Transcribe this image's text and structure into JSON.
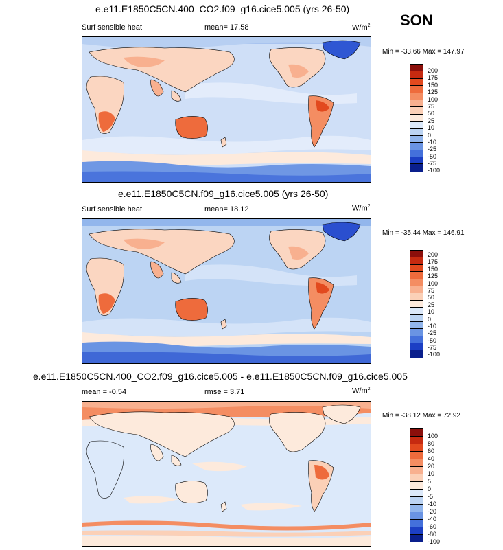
{
  "season": "SON",
  "panels": [
    {
      "title": "e.e11.E1850C5CN.400_CO2.f09_g16.cice5.005 (yrs 26-50)",
      "left_label": "Surf sensible heat",
      "mid_label": "mean=  17.58",
      "units_base": "W/m",
      "units_exp": "2",
      "minmax": "Min = -33.66 Max = 147.97",
      "levels": [
        "200",
        "175",
        "150",
        "125",
        "100",
        "75",
        "50",
        "25",
        "10",
        "0",
        "-10",
        "-25",
        "-50",
        "-75",
        "-100"
      ]
    },
    {
      "title": "e.e11.E1850C5CN.f09_g16.cice5.005 (yrs 26-50)",
      "left_label": "Surf sensible heat",
      "mid_label": "mean=  18.12",
      "units_base": "W/m",
      "units_exp": "2",
      "minmax": "Min = -35.44 Max = 146.91",
      "levels": [
        "200",
        "175",
        "150",
        "125",
        "100",
        "75",
        "50",
        "25",
        "10",
        "0",
        "-10",
        "-25",
        "-50",
        "-75",
        "-100"
      ]
    },
    {
      "title": "e.e11.E1850C5CN.400_CO2.f09_g16.cice5.005 - e.e11.E1850C5CN.f09_g16.cice5.005",
      "left_label": "mean =  -0.54",
      "mid_label": "rmse =  3.71",
      "units_base": "W/m",
      "units_exp": "2",
      "minmax": "Min = -38.12 Max = 72.92",
      "levels": [
        "100",
        "80",
        "60",
        "40",
        "20",
        "10",
        "5",
        "0",
        "-5",
        "-10",
        "-20",
        "-40",
        "-60",
        "-80",
        "-100"
      ]
    }
  ],
  "colorbar_colors": [
    "#8b0f0b",
    "#c62a10",
    "#e2491e",
    "#ee6b3c",
    "#f48d62",
    "#f8b08f",
    "#fbd0b7",
    "#fdeadc",
    "#dce9fa",
    "#bcd4f3",
    "#92b6ec",
    "#6a94e3",
    "#4470db",
    "#1c3fc4",
    "#0a1f8c"
  ]
}
